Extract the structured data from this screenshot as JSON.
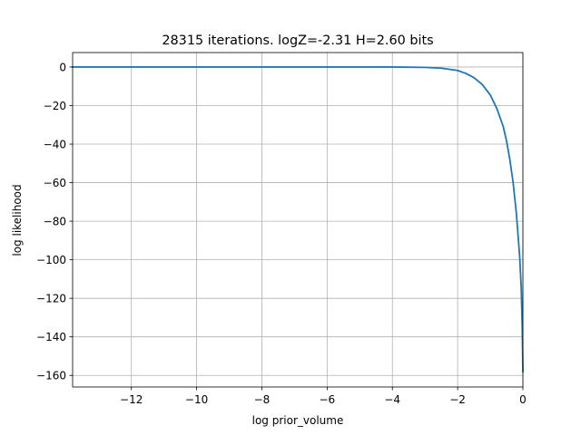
{
  "chart_data": {
    "type": "line",
    "title": "28315 iterations. logZ=-2.31 H=2.60 bits",
    "xlabel": "log prior_volume",
    "ylabel": "log likelihood",
    "xlim": [
      -13.8,
      0.0
    ],
    "ylim": [
      -166,
      7.5
    ],
    "grid": true,
    "legend": "none",
    "xticks": [
      -12,
      -10,
      -8,
      -6,
      -4,
      -2,
      0
    ],
    "xtick_labels": [
      "−12",
      "−10",
      "−8",
      "−6",
      "−4",
      "−2",
      "0"
    ],
    "yticks": [
      0,
      -20,
      -40,
      -60,
      -80,
      -100,
      -120,
      -140,
      -160
    ],
    "ytick_labels": [
      "0",
      "−20",
      "−40",
      "−60",
      "−80",
      "−100",
      "−120",
      "−140",
      "−160"
    ],
    "series": [
      {
        "color": "#1f77b4",
        "x": [
          -13.8,
          -12,
          -10,
          -8,
          -6,
          -4,
          -3,
          -2.5,
          -2,
          -1.75,
          -1.5,
          -1.25,
          -1.0,
          -0.8,
          -0.6,
          -0.5,
          -0.4,
          -0.3,
          -0.2,
          -0.1,
          -0.05,
          -0.02,
          0.0
        ],
        "y": [
          0.0,
          0.0,
          0.0,
          0.0,
          0.0,
          0.0,
          -0.2,
          -0.6,
          -1.8,
          -3.3,
          -5.5,
          -9.0,
          -14.5,
          -21.5,
          -31.0,
          -38.5,
          -48.0,
          -60.0,
          -76.0,
          -98.0,
          -115.0,
          -135.0,
          -158.0
        ]
      }
    ]
  }
}
